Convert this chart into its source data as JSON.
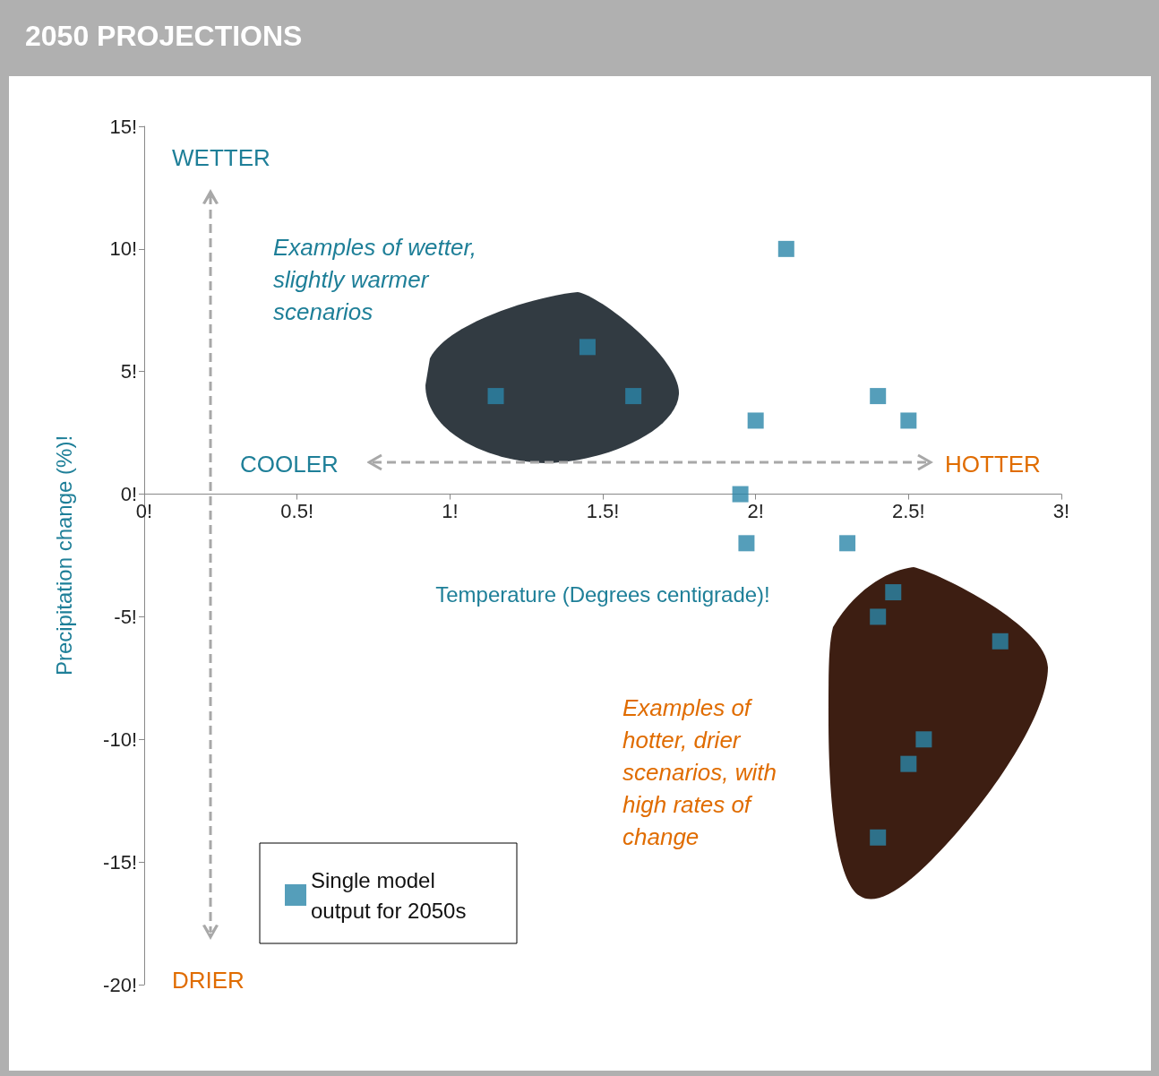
{
  "chart_data": {
    "type": "scatter",
    "title": "2050 PROJECTIONS",
    "xlabel": "Temperature (Degrees centigrade)!",
    "ylabel": "Precipitation change (%)!",
    "xlim": [
      0,
      3
    ],
    "xticks": [
      {
        "value": 0,
        "label": "0!"
      },
      {
        "value": 0.5,
        "label": "0.5!"
      },
      {
        "value": 1,
        "label": "1!"
      },
      {
        "value": 1.5,
        "label": "1.5!"
      },
      {
        "value": 2,
        "label": "2!"
      },
      {
        "value": 2.5,
        "label": "2.5!"
      },
      {
        "value": 3,
        "label": "3!"
      }
    ],
    "ylim": [
      -20,
      15
    ],
    "yticks": [
      {
        "value": -20,
        "label": "-20!"
      },
      {
        "value": -15,
        "label": "-15!"
      },
      {
        "value": -10,
        "label": "-10!"
      },
      {
        "value": -5,
        "label": "-5!"
      },
      {
        "value": 0,
        "label": "0!"
      },
      {
        "value": 5,
        "label": "5!"
      },
      {
        "value": 10,
        "label": "10!"
      },
      {
        "value": 15,
        "label": "15!"
      }
    ],
    "series": [
      {
        "name": "Single model output for 2050s",
        "color": "#2b86a9",
        "x": [
          2.1,
          1.45,
          1.15,
          1.6,
          2.0,
          2.4,
          2.5,
          1.95,
          1.97,
          2.3,
          2.45,
          2.4,
          2.8,
          2.55,
          2.5,
          2.4
        ],
        "values": [
          10,
          6,
          4,
          4,
          3,
          4,
          3,
          0,
          -2,
          -2,
          -4,
          -5,
          -6,
          -10,
          -11,
          -14
        ]
      }
    ],
    "marker": "square",
    "grid": false,
    "legend": "bottom left",
    "annotations": [
      "WETTER",
      "COOLER",
      "HOTTER",
      "DRIER",
      "Examples of wetter, slightly warmer scenarios",
      "Examples of hotter, drier scenarios, with high rates of change"
    ]
  }
}
